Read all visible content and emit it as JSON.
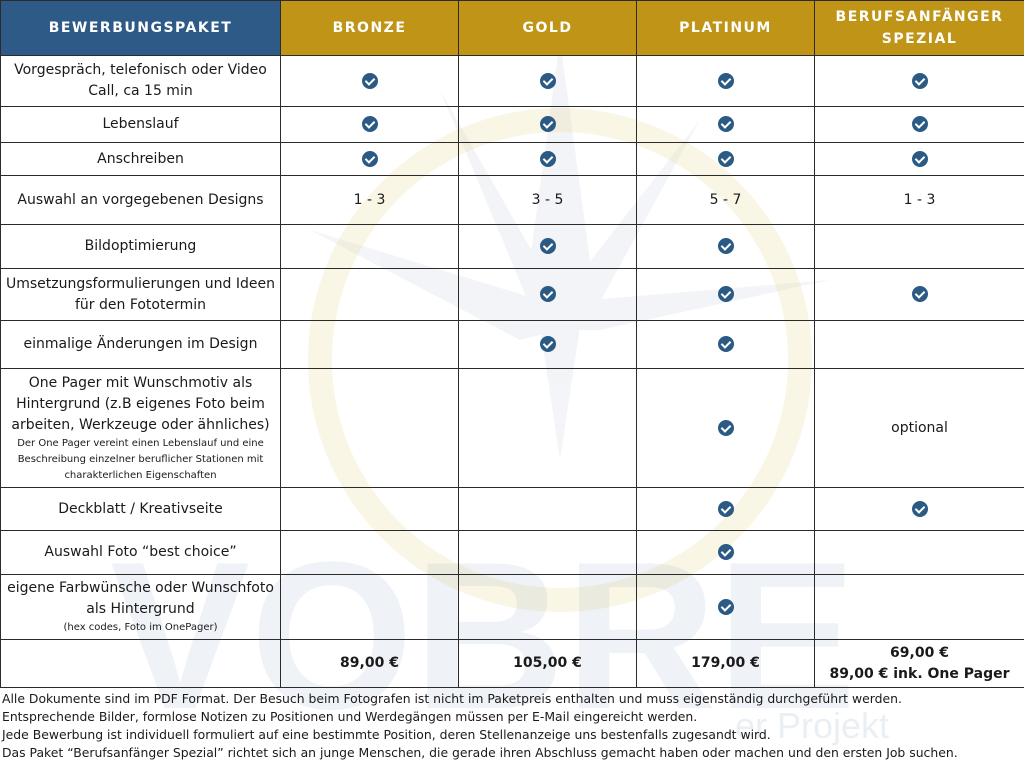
{
  "watermark": {
    "brand": "VOBRE",
    "tagline": "er Projekt"
  },
  "header": {
    "col0": "BEWERBUNGSPAKET",
    "col1": "BRONZE",
    "col2": "GOLD",
    "col3": "PLATINUM",
    "col4_line1": "BERUFSANFÄNGER",
    "col4_line2": "SPEZIAL"
  },
  "rows": [
    {
      "label": "Vorgespräch, telefonisch oder Video Call, ca 15 min",
      "bronze": true,
      "gold": true,
      "platinum": true,
      "spezial": true
    },
    {
      "label": "Lebenslauf",
      "bronze": true,
      "gold": true,
      "platinum": true,
      "spezial": true
    },
    {
      "label": "Anschreiben",
      "bronze": true,
      "gold": true,
      "platinum": true,
      "spezial": true
    },
    {
      "label": "Auswahl an vorgegebenen Designs",
      "bronze": "1 - 3",
      "gold": "3 - 5",
      "platinum": "5 - 7",
      "spezial": "1 - 3"
    },
    {
      "label": "Bildoptimierung",
      "bronze": false,
      "gold": true,
      "platinum": true,
      "spezial": false
    },
    {
      "label": "Umsetzungsformulierungen und Ideen für den Fototermin",
      "bronze": false,
      "gold": true,
      "platinum": true,
      "spezial": true
    },
    {
      "label": "einmalige Änderungen im Design",
      "bronze": false,
      "gold": true,
      "platinum": true,
      "spezial": false
    },
    {
      "label": "One Pager mit Wunschmotiv als Hintergrund (z.B eigenes Foto beim arbeiten, Werkzeuge oder ähnliches)",
      "note": "Der One Pager vereint einen Lebenslauf und eine Beschreibung einzelner beruflicher Stationen mit charakterlichen Eigenschaften",
      "bronze": false,
      "gold": false,
      "platinum": true,
      "spezial": "optional"
    },
    {
      "label": "Deckblatt / Kreativseite",
      "bronze": false,
      "gold": false,
      "platinum": true,
      "spezial": true
    },
    {
      "label": "Auswahl Foto “best choice”",
      "bronze": false,
      "gold": false,
      "platinum": true,
      "spezial": false
    },
    {
      "label": "eigene Farbwünsche oder Wunschfoto als Hintergrund",
      "note": "(hex codes, Foto im OnePager)",
      "bronze": false,
      "gold": false,
      "platinum": true,
      "spezial": false
    }
  ],
  "prices": {
    "bronze": "89,00 €",
    "gold": "105,00 €",
    "platinum": "179,00 €",
    "spezial_line1": "69,00 €",
    "spezial_line2": "89,00 € ink. One Pager"
  },
  "notes": [
    "Alle Dokumente sind im PDF Format. Der Besuch beim Fotografen ist nicht im Paketpreis enthalten und muss eigenständig durchgeführt werden.",
    "Entsprechende Bilder, formlose Notizen zu Positionen und Werdegängen müssen per E-Mail eingereicht werden.",
    "Jede Bewerbung ist individuell formuliert auf eine bestimmte Position, deren Stellenanzeige uns bestenfalls zugesandt wird.",
    "Das Paket “Berufsanfänger Spezial” richtet sich an junge Menschen, die gerade ihren Abschluss gemacht haben oder machen und den ersten Job suchen."
  ],
  "colors": {
    "header_blue": "#2e5a87",
    "header_gold": "#c09417",
    "check_blue": "#2b5b84"
  },
  "icons": {
    "check": "check-circle-icon"
  }
}
